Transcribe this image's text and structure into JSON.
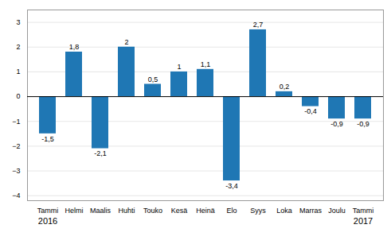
{
  "chart_data": {
    "type": "bar",
    "categories": [
      "Tammi",
      "Helmi",
      "Maalis",
      "Huhti",
      "Touko",
      "Kesä",
      "Heinä",
      "Elo",
      "Syys",
      "Loka",
      "Marras",
      "Joulu",
      "Tammi"
    ],
    "values": [
      -1.5,
      1.8,
      -2.1,
      2.0,
      0.5,
      1.0,
      1.1,
      -3.4,
      2.7,
      0.2,
      -0.4,
      -0.9,
      -0.9
    ],
    "value_labels": [
      "-1,5",
      "1,8",
      "-2,1",
      "2",
      "0,5",
      "1",
      "1,1",
      "-3,4",
      "2,7",
      "0,2",
      "-0,4",
      "-0,9",
      "-0,9"
    ],
    "data_labels": true,
    "color": "#1f77b4",
    "ylim": [
      -4.2,
      3.5
    ],
    "yticks": [
      -4,
      -3,
      -2,
      -1,
      0,
      1,
      2,
      3
    ],
    "grid": true,
    "annotations": [
      {
        "text": "2016",
        "index": 0
      },
      {
        "text": "2017",
        "index": 12
      }
    ]
  }
}
